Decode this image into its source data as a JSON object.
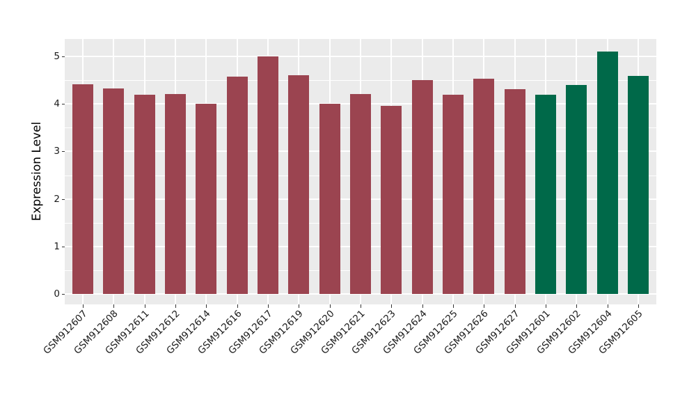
{
  "chart_data": {
    "type": "bar",
    "title": "",
    "xlabel": "",
    "ylabel": "Expression Level",
    "ylim": [
      -0.26,
      5.36
    ],
    "yticks": [
      0,
      1,
      2,
      3,
      4,
      5
    ],
    "grid": true,
    "legend_position": "none",
    "categories": [
      "GSM912607",
      "GSM912608",
      "GSM912611",
      "GSM912612",
      "GSM912614",
      "GSM912616",
      "GSM912617",
      "GSM912619",
      "GSM912620",
      "GSM912621",
      "GSM912623",
      "GSM912624",
      "GSM912625",
      "GSM912626",
      "GSM912627",
      "GSM912601",
      "GSM912602",
      "GSM912604",
      "GSM912605"
    ],
    "values": [
      4.42,
      4.32,
      4.19,
      4.21,
      4.0,
      4.57,
      5.0,
      4.6,
      4.01,
      4.21,
      3.96,
      4.5,
      4.2,
      4.53,
      4.31,
      4.19,
      4.4,
      5.1,
      4.59
    ],
    "bar_colors": [
      "#9B4450",
      "#9B4450",
      "#9B4450",
      "#9B4450",
      "#9B4450",
      "#9B4450",
      "#9B4450",
      "#9B4450",
      "#9B4450",
      "#9B4450",
      "#9B4450",
      "#9B4450",
      "#9B4450",
      "#9B4450",
      "#9B4450",
      "#006949",
      "#006949",
      "#006949",
      "#006949"
    ],
    "groups": [
      {
        "name": "group-red",
        "color": "#9B4450",
        "count": 15
      },
      {
        "name": "group-green",
        "color": "#006949",
        "count": 4
      }
    ]
  },
  "colors": {
    "bar_red": "#9B4450",
    "bar_green": "#006949",
    "panel_bg": "#EBEBEB",
    "grid": "#FFFFFF",
    "axis_text": "#1a1a1a",
    "tick_mark": "#333333",
    "axis_title": "#000000",
    "figure_bg": "#FFFFFF"
  }
}
